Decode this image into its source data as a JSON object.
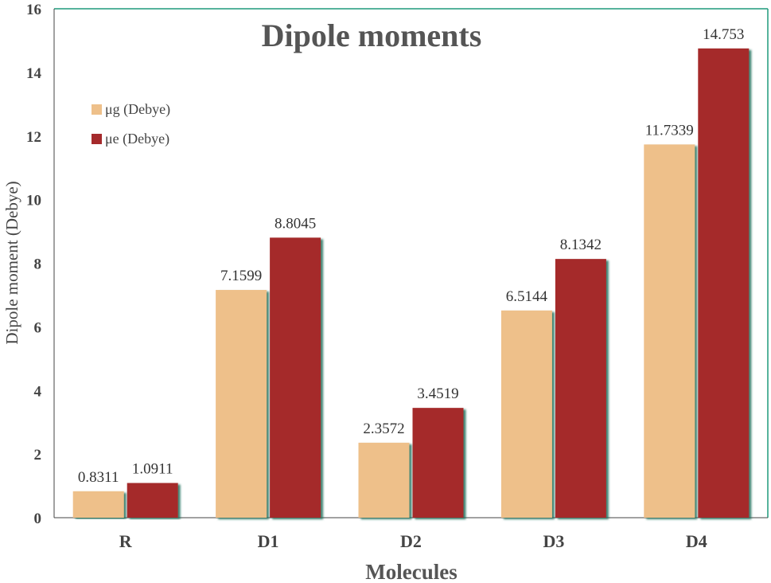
{
  "chart_data": {
    "type": "bar",
    "title": "Dipole moments",
    "xlabel": "Molecules",
    "ylabel": "Dipole moment (Debye)",
    "categories": [
      "R",
      "D1",
      "D2",
      "D3",
      "D4"
    ],
    "ylim": [
      0,
      16
    ],
    "yticks": [
      "0",
      "2",
      "4",
      "6",
      "8",
      "10",
      "12",
      "14",
      "16"
    ],
    "grid": false,
    "legend_position": "top-left",
    "series": [
      {
        "name": "μg (Debye)",
        "values": [
          0.8311,
          7.1599,
          2.3572,
          6.5144,
          11.7339
        ],
        "labels": [
          "0.8311",
          "7.1599",
          "2.3572",
          "6.5144",
          "11.7339"
        ],
        "color": "#eec08a"
      },
      {
        "name": "μe (Debye)",
        "values": [
          1.0911,
          8.8045,
          3.4519,
          8.1342,
          14.753
        ],
        "labels": [
          "1.0911",
          "8.8045",
          "3.4519",
          "8.1342",
          "14.753"
        ],
        "color": "#a52a2c"
      }
    ],
    "frame_color": "#1f9a7c"
  }
}
